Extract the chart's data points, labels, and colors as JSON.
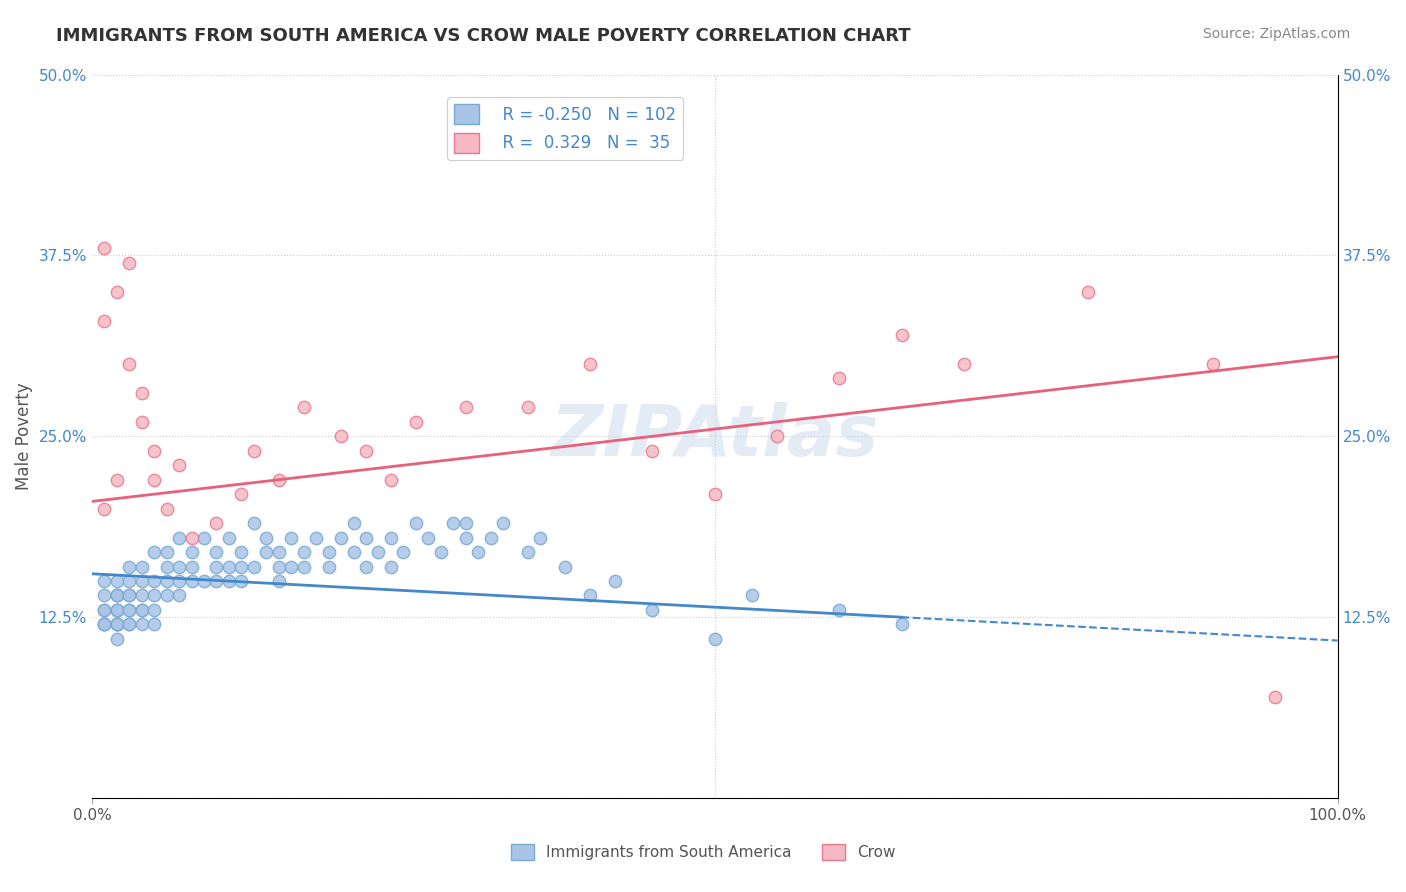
{
  "title": "IMMIGRANTS FROM SOUTH AMERICA VS CROW MALE POVERTY CORRELATION CHART",
  "source": "Source: ZipAtlas.com",
  "xlabel": "",
  "ylabel": "Male Poverty",
  "legend_label_blue": "Immigrants from South America",
  "legend_label_pink": "Crow",
  "r_blue": -0.25,
  "n_blue": 102,
  "r_pink": 0.329,
  "n_pink": 35,
  "xlim": [
    0,
    1
  ],
  "ylim": [
    0,
    0.5
  ],
  "yticks": [
    0,
    0.125,
    0.25,
    0.375,
    0.5
  ],
  "ytick_labels": [
    "",
    "12.5%",
    "25.0%",
    "37.5%",
    "50.0%"
  ],
  "xticks": [
    0,
    1
  ],
  "xtick_labels": [
    "0.0%",
    "100.0%"
  ],
  "bg_color": "#ffffff",
  "plot_bg_color": "#ffffff",
  "grid_color": "#cccccc",
  "blue_dot_color": "#aac4e8",
  "blue_dot_edge": "#7aaad0",
  "pink_dot_color": "#f5b8c4",
  "pink_dot_edge": "#e87a90",
  "blue_line_color": "#4488cc",
  "pink_line_color": "#e8607a",
  "blue_legend_face": "#aac4e8",
  "pink_legend_face": "#f5b8c4",
  "watermark": "ZIPAtlas",
  "watermark_color": "#c8d8ec",
  "blue_scatter_x": [
    0.01,
    0.01,
    0.01,
    0.01,
    0.01,
    0.01,
    0.01,
    0.02,
    0.02,
    0.02,
    0.02,
    0.02,
    0.02,
    0.02,
    0.02,
    0.02,
    0.02,
    0.02,
    0.02,
    0.03,
    0.03,
    0.03,
    0.03,
    0.03,
    0.03,
    0.03,
    0.03,
    0.04,
    0.04,
    0.04,
    0.04,
    0.04,
    0.04,
    0.05,
    0.05,
    0.05,
    0.05,
    0.05,
    0.06,
    0.06,
    0.06,
    0.06,
    0.07,
    0.07,
    0.07,
    0.07,
    0.08,
    0.08,
    0.08,
    0.09,
    0.09,
    0.1,
    0.1,
    0.1,
    0.11,
    0.11,
    0.11,
    0.12,
    0.12,
    0.12,
    0.13,
    0.13,
    0.14,
    0.14,
    0.15,
    0.15,
    0.15,
    0.16,
    0.16,
    0.17,
    0.17,
    0.18,
    0.19,
    0.19,
    0.2,
    0.21,
    0.21,
    0.22,
    0.22,
    0.23,
    0.24,
    0.24,
    0.25,
    0.26,
    0.27,
    0.28,
    0.29,
    0.3,
    0.3,
    0.31,
    0.32,
    0.33,
    0.35,
    0.36,
    0.38,
    0.4,
    0.42,
    0.45,
    0.5,
    0.53,
    0.6,
    0.65
  ],
  "blue_scatter_y": [
    0.12,
    0.13,
    0.12,
    0.14,
    0.13,
    0.15,
    0.12,
    0.14,
    0.12,
    0.13,
    0.14,
    0.12,
    0.15,
    0.13,
    0.12,
    0.11,
    0.13,
    0.14,
    0.12,
    0.13,
    0.15,
    0.14,
    0.12,
    0.16,
    0.13,
    0.14,
    0.12,
    0.15,
    0.13,
    0.14,
    0.16,
    0.12,
    0.13,
    0.17,
    0.14,
    0.15,
    0.13,
    0.12,
    0.16,
    0.15,
    0.14,
    0.17,
    0.18,
    0.16,
    0.15,
    0.14,
    0.17,
    0.15,
    0.16,
    0.18,
    0.15,
    0.16,
    0.17,
    0.15,
    0.18,
    0.16,
    0.15,
    0.17,
    0.16,
    0.15,
    0.19,
    0.16,
    0.17,
    0.18,
    0.16,
    0.17,
    0.15,
    0.18,
    0.16,
    0.17,
    0.16,
    0.18,
    0.17,
    0.16,
    0.18,
    0.17,
    0.19,
    0.18,
    0.16,
    0.17,
    0.18,
    0.16,
    0.17,
    0.19,
    0.18,
    0.17,
    0.19,
    0.18,
    0.19,
    0.17,
    0.18,
    0.19,
    0.17,
    0.18,
    0.16,
    0.14,
    0.15,
    0.13,
    0.11,
    0.14,
    0.13,
    0.12
  ],
  "pink_scatter_x": [
    0.01,
    0.01,
    0.01,
    0.02,
    0.02,
    0.03,
    0.03,
    0.04,
    0.04,
    0.05,
    0.05,
    0.06,
    0.07,
    0.08,
    0.1,
    0.12,
    0.13,
    0.15,
    0.17,
    0.2,
    0.22,
    0.24,
    0.26,
    0.3,
    0.35,
    0.4,
    0.45,
    0.5,
    0.55,
    0.6,
    0.65,
    0.7,
    0.8,
    0.9,
    0.95
  ],
  "pink_scatter_y": [
    0.2,
    0.33,
    0.38,
    0.22,
    0.35,
    0.3,
    0.37,
    0.28,
    0.26,
    0.22,
    0.24,
    0.2,
    0.23,
    0.18,
    0.19,
    0.21,
    0.24,
    0.22,
    0.27,
    0.25,
    0.24,
    0.22,
    0.26,
    0.27,
    0.27,
    0.3,
    0.24,
    0.21,
    0.25,
    0.29,
    0.32,
    0.3,
    0.35,
    0.3,
    0.07
  ]
}
